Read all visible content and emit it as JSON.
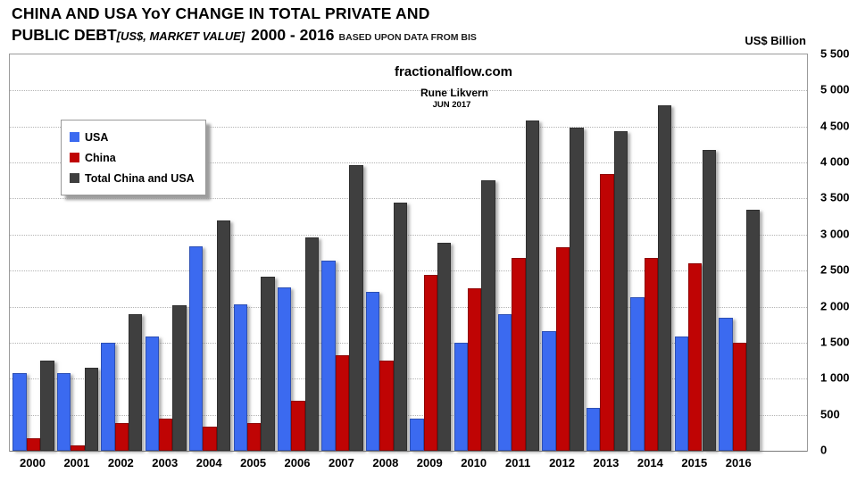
{
  "title": {
    "line1": "CHINA AND USA YoY CHANGE IN TOTAL PRIVATE AND",
    "line2_main": "PUBLIC DEBT",
    "line2_bracket": "[US$, MARKET VALUE]",
    "line2_years": "2000 - 2016",
    "line2_source": "BASED UPON DATA FROM BIS"
  },
  "axis_unit": "US$ Billion",
  "watermark": {
    "site": "fractionalflow.com",
    "author": "Rune Likvern",
    "date": "JUN 2017"
  },
  "colors": {
    "usa": "#3b6af0",
    "china": "#bf0404",
    "total": "#3f3f3f",
    "gridline": "#b4b4b4"
  },
  "chart_data": {
    "type": "bar",
    "title": "CHINA AND USA YoY CHANGE IN TOTAL PRIVATE AND PUBLIC DEBT [US$, MARKET VALUE] 2000 - 2016",
    "ylabel": "US$ Billion",
    "ylim": [
      0,
      5500
    ],
    "ytick_step": 500,
    "ytick_labels": [
      "0",
      "500",
      "1 000",
      "1 500",
      "2 000",
      "2 500",
      "3 000",
      "3 500",
      "4 000",
      "4 500",
      "5 000",
      "5 500"
    ],
    "grid": true,
    "legend_position": "upper-left-inside",
    "categories": [
      "2000",
      "2001",
      "2002",
      "2003",
      "2004",
      "2005",
      "2006",
      "2007",
      "2008",
      "2009",
      "2010",
      "2011",
      "2012",
      "2013",
      "2014",
      "2015",
      "2016"
    ],
    "series": [
      {
        "name": "USA",
        "color": "#3b6af0",
        "values": [
          1080,
          1075,
          1500,
          1580,
          2840,
          2030,
          2270,
          2640,
          2200,
          440,
          1500,
          1900,
          1660,
          590,
          2130,
          1580,
          1850
        ]
      },
      {
        "name": "China",
        "color": "#bf0404",
        "values": [
          175,
          70,
          390,
          440,
          340,
          390,
          690,
          1330,
          1250,
          2440,
          2250,
          2680,
          2830,
          3840,
          2670,
          2600,
          1500
        ]
      },
      {
        "name": "Total China and USA",
        "color": "#3f3f3f",
        "values": [
          1255,
          1150,
          1900,
          2020,
          3190,
          2410,
          2960,
          3970,
          3450,
          2890,
          3750,
          4580,
          4480,
          4440,
          4800,
          4170,
          3350
        ]
      }
    ]
  }
}
